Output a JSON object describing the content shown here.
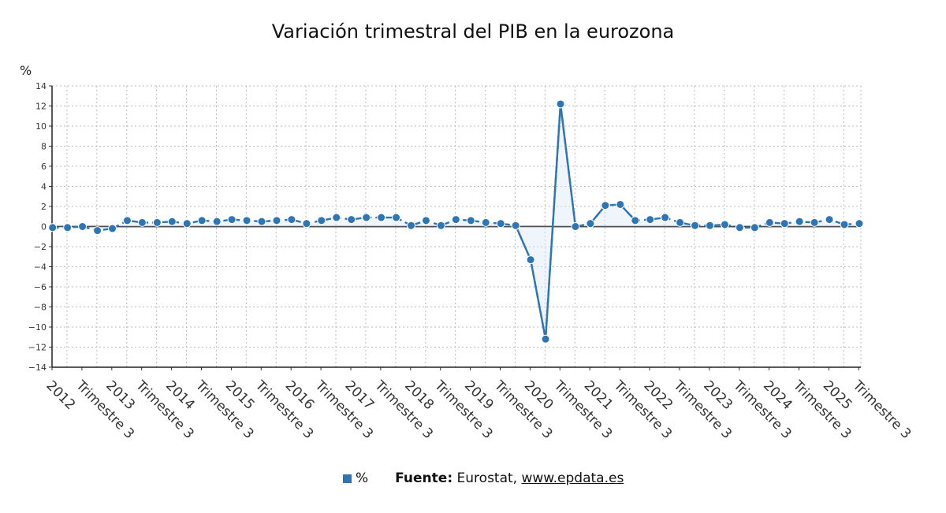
{
  "chart_data": {
    "type": "line",
    "title": "Variación trimestral del PIB en la eurozona",
    "ylabel": "%",
    "ylim": [
      -14,
      14
    ],
    "yticks": [
      14,
      12,
      10,
      8,
      6,
      4,
      2,
      0,
      -2,
      -4,
      -6,
      -8,
      -10,
      -12,
      -14
    ],
    "grid": true,
    "x_tick_labels": [
      "2012",
      "Trimestre 3",
      "2013",
      "Trimestre 3",
      "2014",
      "Trimestre 3",
      "2015",
      "Trimestre 3",
      "2016",
      "Trimestre 3",
      "2017",
      "Trimestre 3",
      "2018",
      "Trimestre 3",
      "2019",
      "Trimestre 3",
      "2020",
      "Trimestre 3",
      "2021",
      "Trimestre 3",
      "2022",
      "Trimestre 3",
      "2023",
      "Trimestre 3",
      "2024",
      "Trimestre 3",
      "2025",
      "Trimestre 3"
    ],
    "series": [
      {
        "name": "%",
        "color": "#2e75b6",
        "values": [
          -0.1,
          -0.1,
          0.0,
          -0.4,
          -0.2,
          0.6,
          0.4,
          0.4,
          0.5,
          0.3,
          0.6,
          0.5,
          0.7,
          0.6,
          0.5,
          0.6,
          0.7,
          0.3,
          0.6,
          0.9,
          0.7,
          0.9,
          0.9,
          0.9,
          0.1,
          0.6,
          0.1,
          0.7,
          0.6,
          0.4,
          0.3,
          0.1,
          -3.3,
          -11.2,
          12.2,
          0.0,
          0.3,
          2.1,
          2.2,
          0.6,
          0.7,
          0.9,
          0.4,
          0.1,
          0.1,
          0.2,
          -0.1,
          -0.1,
          0.4,
          0.3,
          0.5,
          0.4,
          0.7,
          0.2,
          0.3
        ]
      }
    ]
  },
  "legend": {
    "label": "%"
  },
  "source": {
    "label": "Fuente:",
    "text": "Eurostat,",
    "link": "www.epdata.es"
  }
}
